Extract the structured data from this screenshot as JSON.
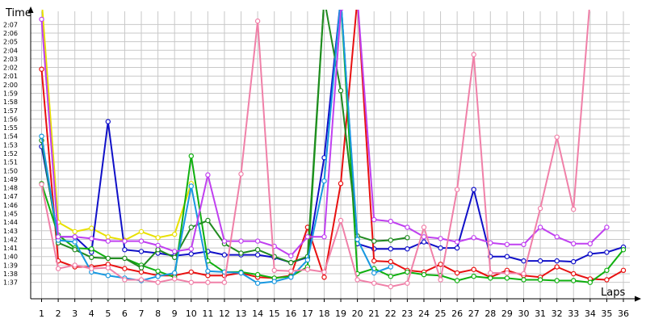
{
  "chart_data": {
    "type": "line",
    "ylabel": "Time",
    "xlabel": "Laps",
    "x": [
      1,
      2,
      3,
      4,
      5,
      6,
      7,
      8,
      9,
      10,
      11,
      12,
      13,
      14,
      15,
      16,
      17,
      18,
      19,
      20,
      21,
      22,
      23,
      24,
      25,
      26,
      27,
      28,
      29,
      30,
      31,
      32,
      33,
      34,
      35,
      36
    ],
    "y_ticks": [
      "1:37",
      "1:38",
      "1:39",
      "1:40",
      "1:41",
      "1:42",
      "1:43",
      "1:44",
      "1:45",
      "1:46",
      "1:47",
      "1:48",
      "1:49",
      "1:50",
      "1:51",
      "1:52",
      "1:53",
      "1:54",
      "1:55",
      "1:56",
      "1:57",
      "1:58",
      "1:59",
      "2:00",
      "2:01",
      "2:02",
      "2:03",
      "2:04",
      "2:05",
      "2:06",
      "2:07"
    ],
    "ylim": [
      96,
      128
    ],
    "xlim": [
      1,
      36
    ],
    "grid": true,
    "legend": "none",
    "series": [
      {
        "color": "#e8e000",
        "values": [
          130,
          104,
          102.9,
          103.3,
          102.3,
          101.9,
          102.9,
          102.2,
          102.6,
          108.5,
          null,
          null,
          null,
          null,
          null,
          null,
          null,
          null,
          null,
          null,
          null,
          null,
          null,
          null,
          null,
          null,
          null,
          null,
          null,
          null,
          null,
          null,
          null,
          null,
          null,
          null
        ]
      },
      {
        "color": "#1010c8",
        "values": [
          112.8,
          102.3,
          102.3,
          100.5,
          115.7,
          100.8,
          100.6,
          100.4,
          100.1,
          100.3,
          100.6,
          100.2,
          100.2,
          100.2,
          99.9,
          99.3,
          99.9,
          111.5,
          130,
          101.5,
          100.9,
          100.9,
          100.9,
          101.7,
          101,
          101,
          107.8,
          100,
          100,
          99.5,
          99.5,
          99.5,
          99.4,
          100.3,
          100.5,
          101.1
        ]
      },
      {
        "color": "#e81010",
        "values": [
          121.8,
          99.5,
          98.8,
          98.8,
          99.1,
          98.6,
          98.2,
          97.8,
          97.8,
          98.2,
          97.8,
          97.8,
          98.1,
          97.6,
          97.5,
          97.8,
          103.4,
          97.6,
          108.5,
          130,
          99.5,
          99.4,
          98.4,
          98.2,
          99.1,
          98.1,
          98.5,
          97.6,
          98.4,
          97.8,
          97.6,
          98.8,
          98,
          97.4,
          97.3,
          98.4
        ]
      },
      {
        "color": "#10b010",
        "values": [
          108.5,
          102.5,
          101,
          100.9,
          99.8,
          99.8,
          99,
          98.3,
          97.6,
          111.7,
          99.5,
          98.2,
          98.2,
          97.9,
          97.5,
          97.7,
          98.8,
          130,
          130,
          98,
          98.6,
          97.7,
          98.2,
          97.9,
          97.8,
          97.2,
          97.7,
          97.5,
          97.5,
          97.3,
          97.3,
          97.2,
          97.2,
          97.0,
          98.4,
          100.8
        ]
      },
      {
        "color": "#208a20",
        "values": [
          113.5,
          101.6,
          100.8,
          99.9,
          99.8,
          99.8,
          98.7,
          100.8,
          99.9,
          103.4,
          104.2,
          101.5,
          100.4,
          100.8,
          100,
          99.3,
          100,
          130,
          119.3,
          102.4,
          101.8,
          101.9,
          102.2,
          null,
          null,
          null,
          null,
          null,
          null,
          null,
          null,
          null,
          null,
          null,
          null,
          null
        ]
      },
      {
        "color": "#1898e0",
        "values": [
          114,
          101.9,
          101.7,
          98.2,
          97.8,
          97.5,
          97.2,
          97.7,
          98.1,
          108.2,
          98.3,
          98.2,
          98.1,
          96.9,
          97.1,
          97.6,
          99.6,
          108.8,
          130,
          102,
          98.1,
          98.8,
          null,
          null,
          null,
          null,
          null,
          null,
          null,
          null,
          null,
          null,
          null,
          null,
          null,
          null
        ]
      },
      {
        "color": "#c040f0",
        "values": [
          127.6,
          102.3,
          102.3,
          102.1,
          101.8,
          101.8,
          101.8,
          101.3,
          100.6,
          100.9,
          109.5,
          101.8,
          101.8,
          101.8,
          101.2,
          100.1,
          102.3,
          102.3,
          128.6,
          130,
          104.3,
          104.1,
          103.4,
          102.3,
          102.1,
          101.7,
          102.2,
          101.6,
          101.4,
          101.4,
          103.4,
          102.3,
          101.5,
          101.5,
          103.4,
          null
        ]
      },
      {
        "color": "#f080a8",
        "values": [
          108.4,
          98.6,
          99,
          98.6,
          98.7,
          97.3,
          97.3,
          97.0,
          97.4,
          97.0,
          97.0,
          97.0,
          109.6,
          127.4,
          98.4,
          98.3,
          98.5,
          98.2,
          104.2,
          97.3,
          96.9,
          96.5,
          96.9,
          103.4,
          97.3,
          107.8,
          123.5,
          98.1,
          98.1,
          98.0,
          105.6,
          113.9,
          105.5,
          130,
          null,
          null
        ]
      }
    ]
  }
}
